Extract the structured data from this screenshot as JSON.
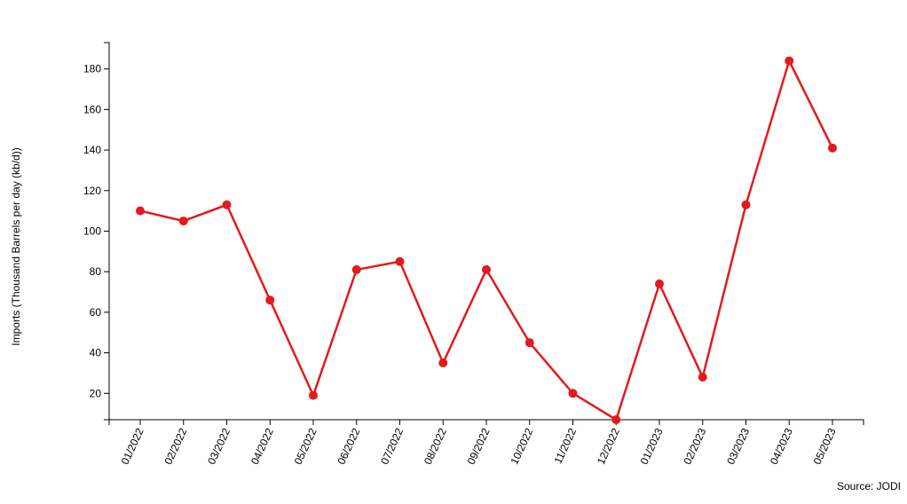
{
  "chart_data": {
    "type": "line",
    "y_label": "Imports (Thousand Barrels per day (kb/d))",
    "source": "Source: JODI",
    "categories": [
      "01/2022",
      "02/2022",
      "03/2022",
      "04/2022",
      "05/2022",
      "06/2022",
      "07/2022",
      "08/2022",
      "09/2022",
      "10/2022",
      "11/2022",
      "12/2022",
      "01/2023",
      "02/2023",
      "03/2023",
      "04/2023",
      "05/2023"
    ],
    "series": [
      {
        "color": "#e31a1c",
        "values": [
          110,
          105,
          113,
          66,
          19,
          81,
          85,
          35,
          81,
          45,
          20,
          7,
          74,
          28,
          113,
          184,
          141
        ]
      }
    ],
    "ylim": [
      7,
      193
    ],
    "yticks": [
      20,
      40,
      60,
      80,
      100,
      120,
      140,
      160,
      180
    ]
  }
}
